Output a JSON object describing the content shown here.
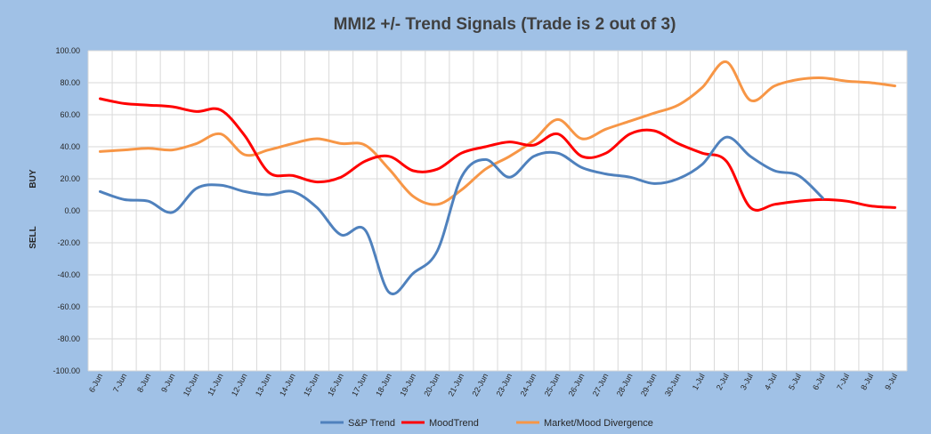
{
  "chart_data": {
    "type": "line",
    "title": "MMI2 +/- Trend Signals (Trade is 2 out of 3)",
    "y_side_labels": {
      "upper": "BUY",
      "lower": "SELL"
    },
    "ylim": [
      -100,
      100
    ],
    "y_ticks": [
      "100.00",
      "80.00",
      "60.00",
      "40.00",
      "20.00",
      "0.00",
      "-20.00",
      "-40.00",
      "-60.00",
      "-80.00",
      "-100.00"
    ],
    "grid": true,
    "legend_position": "bottom",
    "categories": [
      "6-Jun",
      "7-Jun",
      "8-Jun",
      "9-Jun",
      "10-Jun",
      "11-Jun",
      "12-Jun",
      "13-Jun",
      "14-Jun",
      "15-Jun",
      "16-Jun",
      "17-Jun",
      "18-Jun",
      "19-Jun",
      "20-Jun",
      "21-Jun",
      "22-Jun",
      "23-Jun",
      "24-Jun",
      "25-Jun",
      "26-Jun",
      "27-Jun",
      "28-Jun",
      "29-Jun",
      "30-Jun",
      "1-Jul",
      "2-Jul",
      "3-Jul",
      "4-Jul",
      "5-Jul",
      "6-Jul",
      "7-Jul",
      "8-Jul",
      "9-Jul"
    ],
    "series": [
      {
        "name": "S&P Trend",
        "color": "#4f81bd",
        "values": [
          12,
          7,
          6,
          -1,
          14,
          16,
          12,
          10,
          12,
          2,
          -15,
          -12,
          -51,
          -39,
          -25,
          21,
          32,
          21,
          34,
          36,
          27,
          23,
          21,
          17,
          20,
          29,
          46,
          34,
          25,
          22,
          8,
          null,
          null,
          null
        ]
      },
      {
        "name": "MoodTrend",
        "color": "#ff0000",
        "values": [
          70,
          67,
          66,
          65,
          62,
          63,
          47,
          24,
          22,
          18,
          21,
          31,
          34,
          25,
          26,
          36,
          40,
          43,
          41,
          48,
          34,
          36,
          48,
          50,
          42,
          36,
          31,
          2,
          4,
          6,
          7,
          6,
          3,
          2
        ]
      },
      {
        "name": "Market/Mood Divergence",
        "color": "#f79646",
        "values": [
          37,
          38,
          39,
          38,
          42,
          48,
          35,
          38,
          42,
          45,
          42,
          41,
          26,
          9,
          4,
          13,
          26,
          34,
          44,
          57,
          45,
          51,
          56,
          61,
          66,
          77,
          93,
          69,
          78,
          82,
          83,
          81,
          80,
          78
        ]
      }
    ]
  }
}
